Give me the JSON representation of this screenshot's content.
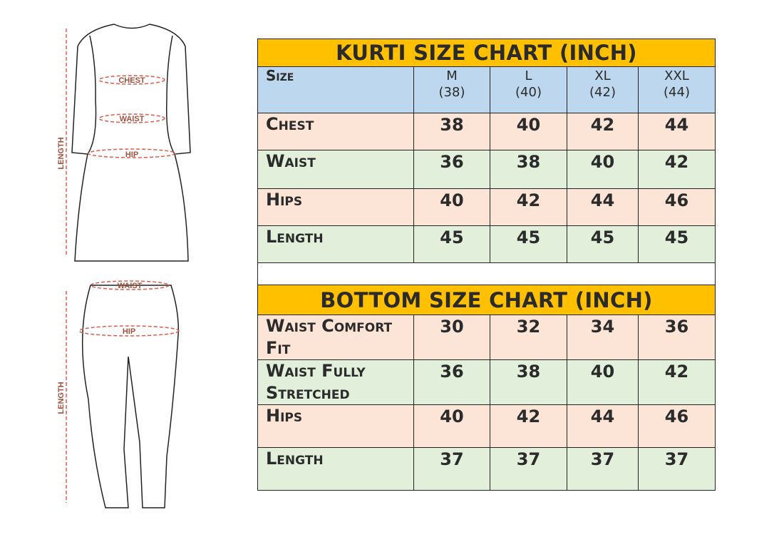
{
  "colors": {
    "title": "#FFC000",
    "header": "#BDD7EE",
    "peach": "#FCE4D6",
    "green": "#E2EFDA",
    "measure": "#C0504D"
  },
  "kurti_figure": {
    "chest": "CHEST",
    "waist": "WAIST",
    "hip": "HIP",
    "length": "LENGTH"
  },
  "bottom_figure": {
    "waist": "WAIST",
    "hip": "HIP",
    "length": "LENGTH"
  },
  "kurti_table": {
    "title": "KURTI SIZE CHART (INCH)",
    "header": {
      "label": "Size",
      "sizes": [
        {
          "name": "M",
          "value": "(38)"
        },
        {
          "name": "L",
          "value": "(40)"
        },
        {
          "name": "XL",
          "value": "(42)"
        },
        {
          "name": "XXL",
          "value": "(44)"
        }
      ]
    },
    "rows": [
      {
        "label": "Chest",
        "values": [
          "38",
          "40",
          "42",
          "44"
        ]
      },
      {
        "label": "Waist",
        "values": [
          "36",
          "38",
          "40",
          "42"
        ]
      },
      {
        "label": "Hips",
        "values": [
          "40",
          "42",
          "44",
          "46"
        ]
      },
      {
        "label": "Length",
        "values": [
          "45",
          "45",
          "45",
          "45"
        ]
      }
    ]
  },
  "bottom_table": {
    "title": "BOTTOM SIZE CHART (INCH)",
    "rows": [
      {
        "label": "Waist Comfort Fit",
        "values": [
          "30",
          "32",
          "34",
          "36"
        ]
      },
      {
        "label": "Waist Fully Stretched",
        "values": [
          "36",
          "38",
          "40",
          "42"
        ]
      },
      {
        "label": "Hips",
        "values": [
          "40",
          "42",
          "44",
          "46"
        ]
      },
      {
        "label": "Length",
        "values": [
          "37",
          "37",
          "37",
          "37"
        ]
      }
    ]
  }
}
